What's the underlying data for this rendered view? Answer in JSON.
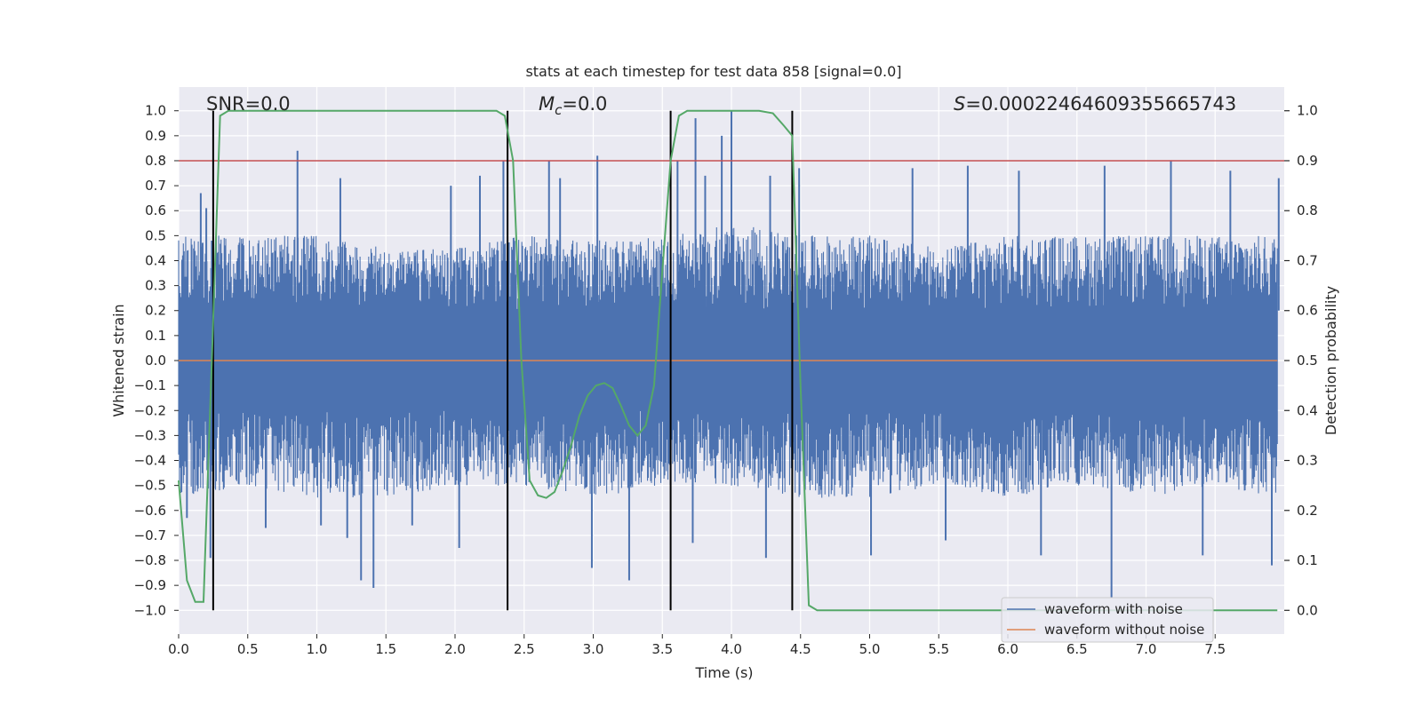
{
  "chart_data": {
    "type": "line",
    "title": "stats at each timestep for test data 858 [signal=0.0]",
    "xlabel": "Time (s)",
    "ylabel_left": "Whitened strain",
    "ylabel_right": "Detection probability",
    "annotations": {
      "snr": "SNR=0.0",
      "mc_symbol": "M",
      "mc_sub": "c",
      "mc_value": "=0.0",
      "s_symbol": "S",
      "s_value": "=0.00022464609355665743"
    },
    "xlim": [
      0.0,
      8.0
    ],
    "ylim_left": [
      -1.095,
      1.095
    ],
    "ylim_right": [
      -0.0475,
      1.0475
    ],
    "x_ticks": [
      "0.0",
      "0.5",
      "1.0",
      "1.5",
      "2.0",
      "2.5",
      "3.0",
      "3.5",
      "4.0",
      "4.5",
      "5.0",
      "5.5",
      "6.0",
      "6.5",
      "7.0",
      "7.5"
    ],
    "y_ticks_left": [
      "1.0",
      "0.9",
      "0.8",
      "0.7",
      "0.6",
      "0.5",
      "0.4",
      "0.3",
      "0.2",
      "0.1",
      "0.0",
      "−0.1",
      "−0.2",
      "−0.3",
      "−0.4",
      "−0.5",
      "−0.6",
      "−0.7",
      "−0.8",
      "−0.9",
      "−1.0"
    ],
    "y_ticks_right": [
      "1.0",
      "0.9",
      "0.8",
      "0.7",
      "0.6",
      "0.5",
      "0.4",
      "0.3",
      "0.2",
      "0.1",
      "0.0"
    ],
    "threshold": 0.9,
    "vertical_lines": [
      0.25,
      2.38,
      3.56,
      4.44
    ],
    "detection_probability": {
      "x": [
        0.0,
        0.06,
        0.12,
        0.18,
        0.24,
        0.3,
        0.36,
        0.5,
        1.0,
        1.5,
        2.0,
        2.3,
        2.36,
        2.42,
        2.48,
        2.54,
        2.6,
        2.66,
        2.72,
        2.78,
        2.84,
        2.9,
        2.96,
        3.02,
        3.08,
        3.14,
        3.2,
        3.26,
        3.32,
        3.38,
        3.44,
        3.5,
        3.56,
        3.62,
        3.68,
        3.74,
        3.8,
        4.0,
        4.2,
        4.3,
        4.38,
        4.44,
        4.5,
        4.56,
        4.62,
        4.7,
        5.0,
        6.0,
        7.0,
        7.95
      ],
      "y": [
        0.26,
        0.06,
        0.017,
        0.017,
        0.5,
        0.99,
        1.0,
        1.0,
        1.0,
        1.0,
        1.0,
        1.0,
        0.99,
        0.9,
        0.5,
        0.26,
        0.23,
        0.225,
        0.237,
        0.28,
        0.33,
        0.39,
        0.43,
        0.45,
        0.455,
        0.445,
        0.41,
        0.37,
        0.35,
        0.37,
        0.45,
        0.68,
        0.9,
        0.99,
        1.0,
        1.0,
        1.0,
        1.0,
        1.0,
        0.995,
        0.97,
        0.95,
        0.45,
        0.01,
        0.0,
        0.0,
        0.0,
        0.0,
        0.0,
        0.0
      ]
    },
    "noise_envelope": {
      "x": [
        0.0,
        0.5,
        1.0,
        1.5,
        2.0,
        2.5,
        3.0,
        3.5,
        4.0,
        4.5,
        5.0,
        5.5,
        6.0,
        6.5,
        7.0,
        7.5,
        7.95
      ],
      "upper": [
        0.5,
        0.5,
        0.5,
        0.45,
        0.45,
        0.5,
        0.48,
        0.5,
        0.55,
        0.5,
        0.5,
        0.45,
        0.5,
        0.5,
        0.5,
        0.5,
        0.5
      ],
      "lower": [
        -0.55,
        -0.5,
        -0.55,
        -0.55,
        -0.5,
        -0.5,
        -0.55,
        -0.5,
        -0.5,
        -0.55,
        -0.55,
        -0.5,
        -0.55,
        -0.5,
        -0.55,
        -0.5,
        -0.55
      ]
    },
    "noise_peaks": [
      {
        "x": 0.16,
        "y": 0.67
      },
      {
        "x": 0.2,
        "y": 0.61
      },
      {
        "x": 0.24,
        "y": 0.48
      },
      {
        "x": 0.86,
        "y": 0.84
      },
      {
        "x": 1.17,
        "y": 0.73
      },
      {
        "x": 1.97,
        "y": 0.7
      },
      {
        "x": 2.18,
        "y": 0.74
      },
      {
        "x": 2.35,
        "y": 0.8
      },
      {
        "x": 2.68,
        "y": 0.8
      },
      {
        "x": 2.76,
        "y": 0.73
      },
      {
        "x": 3.03,
        "y": 0.82
      },
      {
        "x": 3.61,
        "y": 0.8
      },
      {
        "x": 3.74,
        "y": 0.97
      },
      {
        "x": 3.81,
        "y": 0.74
      },
      {
        "x": 3.93,
        "y": 0.9
      },
      {
        "x": 4.0,
        "y": 1.0
      },
      {
        "x": 4.28,
        "y": 0.74
      },
      {
        "x": 4.49,
        "y": 0.77
      },
      {
        "x": 5.31,
        "y": 0.77
      },
      {
        "x": 5.71,
        "y": 0.78
      },
      {
        "x": 6.08,
        "y": 0.76
      },
      {
        "x": 6.7,
        "y": 0.78
      },
      {
        "x": 7.18,
        "y": 0.8
      },
      {
        "x": 7.61,
        "y": 0.76
      },
      {
        "x": 7.96,
        "y": 0.73
      },
      {
        "x": 0.06,
        "y": -0.63
      },
      {
        "x": 0.23,
        "y": -0.79
      },
      {
        "x": 0.63,
        "y": -0.67
      },
      {
        "x": 1.03,
        "y": -0.66
      },
      {
        "x": 1.22,
        "y": -0.71
      },
      {
        "x": 1.32,
        "y": -0.88
      },
      {
        "x": 1.41,
        "y": -0.91
      },
      {
        "x": 1.69,
        "y": -0.66
      },
      {
        "x": 2.03,
        "y": -0.75
      },
      {
        "x": 2.38,
        "y": -0.76
      },
      {
        "x": 2.99,
        "y": -0.83
      },
      {
        "x": 3.26,
        "y": -0.88
      },
      {
        "x": 3.72,
        "y": -0.73
      },
      {
        "x": 4.25,
        "y": -0.79
      },
      {
        "x": 5.01,
        "y": -0.78
      },
      {
        "x": 5.55,
        "y": -0.72
      },
      {
        "x": 6.24,
        "y": -0.78
      },
      {
        "x": 6.75,
        "y": -0.95
      },
      {
        "x": 7.41,
        "y": -0.78
      },
      {
        "x": 7.91,
        "y": -0.82
      }
    ],
    "legend": {
      "position": "lower-right",
      "entries": [
        {
          "label": "waveform with noise",
          "color": "#4c72b0"
        },
        {
          "label": "waveform without noise",
          "color": "#dd8452"
        }
      ]
    },
    "colors": {
      "background": "#eaeaf2",
      "grid": "#ffffff",
      "noise": "#4c72b0",
      "clean": "#dd8452",
      "probability": "#55a868",
      "threshold": "#c44e52",
      "vertical": "#000000"
    },
    "grid": true
  }
}
